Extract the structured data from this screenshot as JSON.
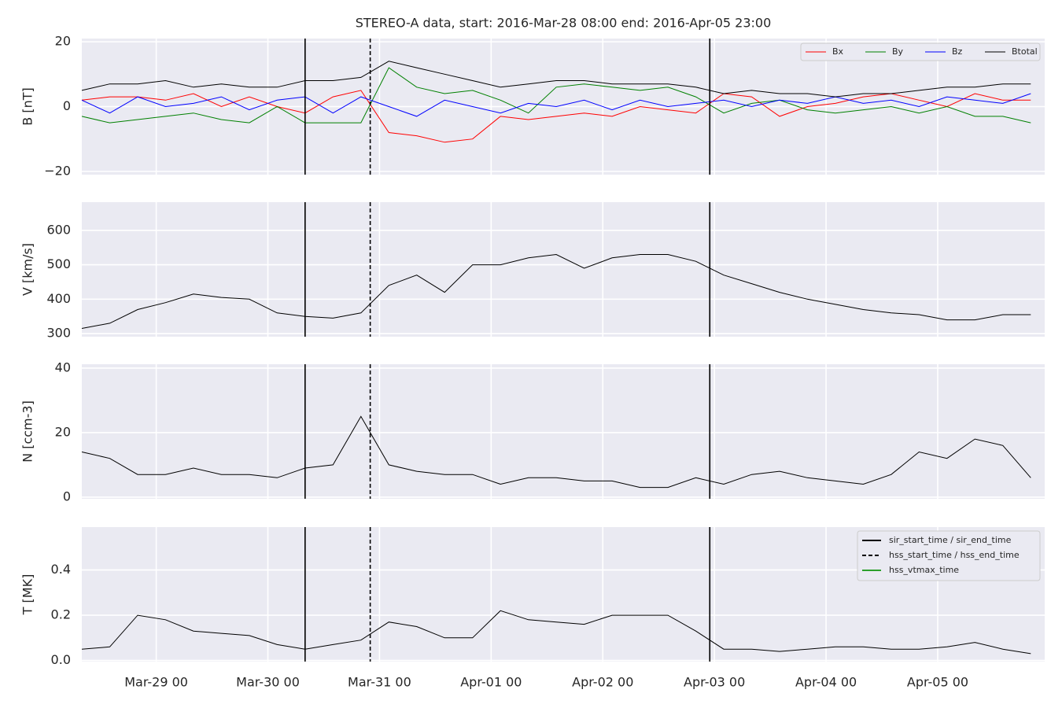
{
  "chart_data": [
    {
      "type": "line",
      "title": "STEREO-A data, start: 2016-Mar-28 08:00  end: 2016-Apr-05 23:00",
      "ylabel": "B [nT]",
      "x": [
        "Mar-28 08",
        "Mar-28 14",
        "Mar-28 20",
        "Mar-29 02",
        "Mar-29 08",
        "Mar-29 14",
        "Mar-29 20",
        "Mar-30 02",
        "Mar-30 08",
        "Mar-30 14",
        "Mar-30 20",
        "Mar-31 02",
        "Mar-31 08",
        "Mar-31 14",
        "Mar-31 20",
        "Apr-01 02",
        "Apr-01 08",
        "Apr-01 14",
        "Apr-01 20",
        "Apr-02 02",
        "Apr-02 08",
        "Apr-02 14",
        "Apr-02 20",
        "Apr-03 02",
        "Apr-03 08",
        "Apr-03 14",
        "Apr-03 20",
        "Apr-04 02",
        "Apr-04 08",
        "Apr-04 14",
        "Apr-04 20",
        "Apr-05 02",
        "Apr-05 08",
        "Apr-05 14",
        "Apr-05 20"
      ],
      "series": [
        {
          "name": "Bx",
          "color": "#ff0000",
          "values": [
            2,
            3,
            3,
            2,
            4,
            0,
            3,
            0,
            -2,
            3,
            5,
            -8,
            -9,
            -11,
            -10,
            -3,
            -4,
            -3,
            -2,
            -3,
            0,
            -1,
            -2,
            4,
            3,
            -3,
            0,
            1,
            3,
            4,
            2,
            0,
            4,
            2,
            2
          ]
        },
        {
          "name": "By",
          "color": "#008000",
          "values": [
            -3,
            -5,
            -4,
            -3,
            -2,
            -4,
            -5,
            0,
            -5,
            -5,
            -5,
            12,
            6,
            4,
            5,
            2,
            -2,
            6,
            7,
            6,
            5,
            6,
            3,
            -2,
            1,
            2,
            -1,
            -2,
            -1,
            0,
            -2,
            0,
            -3,
            -3,
            -5
          ]
        },
        {
          "name": "Bz",
          "color": "#0000ff",
          "values": [
            2,
            -2,
            3,
            0,
            1,
            3,
            -1,
            2,
            3,
            -2,
            3,
            0,
            -3,
            2,
            0,
            -2,
            1,
            0,
            2,
            -1,
            2,
            0,
            1,
            2,
            0,
            2,
            1,
            3,
            1,
            2,
            0,
            3,
            2,
            1,
            4
          ]
        },
        {
          "name": "Btotal",
          "color": "#000000",
          "values": [
            5,
            7,
            7,
            8,
            6,
            7,
            6,
            6,
            8,
            8,
            9,
            14,
            12,
            10,
            8,
            6,
            7,
            8,
            8,
            7,
            7,
            7,
            6,
            4,
            5,
            4,
            4,
            3,
            4,
            4,
            5,
            6,
            6,
            7,
            7
          ]
        }
      ],
      "ylim": [
        -21,
        21
      ],
      "yticks": [
        {
          "value": -20,
          "label": "−20"
        },
        0,
        20
      ],
      "grid": true,
      "legend": "upper right"
    },
    {
      "type": "line",
      "ylabel": "V [km/s]",
      "x": [
        "Mar-28 08",
        "Mar-28 14",
        "Mar-28 20",
        "Mar-29 02",
        "Mar-29 08",
        "Mar-29 14",
        "Mar-29 20",
        "Mar-30 02",
        "Mar-30 08",
        "Mar-30 14",
        "Mar-30 20",
        "Mar-31 02",
        "Mar-31 08",
        "Mar-31 14",
        "Mar-31 20",
        "Apr-01 02",
        "Apr-01 08",
        "Apr-01 14",
        "Apr-01 20",
        "Apr-02 02",
        "Apr-02 08",
        "Apr-02 14",
        "Apr-02 20",
        "Apr-03 02",
        "Apr-03 08",
        "Apr-03 14",
        "Apr-03 20",
        "Apr-04 02",
        "Apr-04 08",
        "Apr-04 14",
        "Apr-04 20",
        "Apr-05 02",
        "Apr-05 08",
        "Apr-05 14",
        "Apr-05 20"
      ],
      "values": [
        315,
        330,
        370,
        390,
        415,
        405,
        400,
        360,
        350,
        345,
        360,
        440,
        470,
        420,
        500,
        500,
        520,
        530,
        490,
        520,
        530,
        530,
        510,
        470,
        445,
        420,
        400,
        385,
        370,
        360,
        355,
        340,
        340,
        355,
        355
      ],
      "color": "#000000",
      "ylim": [
        291,
        682
      ],
      "yticks": [
        300,
        400,
        500,
        600
      ],
      "grid": true
    },
    {
      "type": "line",
      "ylabel": "N [ccm-3]",
      "x": [
        "Mar-28 08",
        "Mar-28 14",
        "Mar-28 20",
        "Mar-29 02",
        "Mar-29 08",
        "Mar-29 14",
        "Mar-29 20",
        "Mar-30 02",
        "Mar-30 08",
        "Mar-30 14",
        "Mar-30 20",
        "Mar-31 02",
        "Mar-31 08",
        "Mar-31 14",
        "Mar-31 20",
        "Apr-01 02",
        "Apr-01 08",
        "Apr-01 14",
        "Apr-01 20",
        "Apr-02 02",
        "Apr-02 08",
        "Apr-02 14",
        "Apr-02 20",
        "Apr-03 02",
        "Apr-03 08",
        "Apr-03 14",
        "Apr-03 20",
        "Apr-04 02",
        "Apr-04 08",
        "Apr-04 14",
        "Apr-04 20",
        "Apr-05 02",
        "Apr-05 08",
        "Apr-05 14",
        "Apr-05 20"
      ],
      "values": [
        14,
        12,
        7,
        7,
        9,
        7,
        7,
        6,
        9,
        10,
        25,
        10,
        8,
        7,
        7,
        4,
        6,
        6,
        5,
        5,
        3,
        3,
        6,
        4,
        7,
        8,
        6,
        5,
        4,
        7,
        14,
        12,
        18,
        16,
        6
      ],
      "color": "#000000",
      "ylim": [
        -0.5,
        41.2
      ],
      "yticks": [
        0,
        20,
        40
      ],
      "grid": true
    },
    {
      "type": "line",
      "ylabel": "T [MK]",
      "x": [
        "Mar-28 08",
        "Mar-28 14",
        "Mar-28 20",
        "Mar-29 02",
        "Mar-29 08",
        "Mar-29 14",
        "Mar-29 20",
        "Mar-30 02",
        "Mar-30 08",
        "Mar-30 14",
        "Mar-30 20",
        "Mar-31 02",
        "Mar-31 08",
        "Mar-31 14",
        "Mar-31 20",
        "Apr-01 02",
        "Apr-01 08",
        "Apr-01 14",
        "Apr-01 20",
        "Apr-02 02",
        "Apr-02 08",
        "Apr-02 14",
        "Apr-02 20",
        "Apr-03 02",
        "Apr-03 08",
        "Apr-03 14",
        "Apr-03 20",
        "Apr-04 02",
        "Apr-04 08",
        "Apr-04 14",
        "Apr-04 20",
        "Apr-05 02",
        "Apr-05 08",
        "Apr-05 14",
        "Apr-05 20"
      ],
      "values": [
        0.05,
        0.06,
        0.2,
        0.18,
        0.13,
        0.12,
        0.11,
        0.07,
        0.05,
        0.07,
        0.09,
        0.17,
        0.15,
        0.1,
        0.1,
        0.22,
        0.18,
        0.17,
        0.16,
        0.2,
        0.2,
        0.2,
        0.13,
        0.05,
        0.05,
        0.04,
        0.05,
        0.06,
        0.06,
        0.05,
        0.05,
        0.06,
        0.08,
        0.05,
        0.03
      ],
      "color": "#000000",
      "ylim": [
        -0.005,
        0.59
      ],
      "yticks": [
        {
          "value": 0,
          "label": "0.0"
        },
        0.2,
        0.4
      ],
      "grid": true,
      "xlim": [
        "Mar-28 08",
        "Apr-05 23"
      ],
      "xticks": [
        "Mar-29 00",
        "Mar-30 00",
        "Mar-31 00",
        "Apr-01 00",
        "Apr-02 00",
        "Apr-03 00",
        "Apr-04 00",
        "Apr-05 00"
      ],
      "legend": "upper right",
      "events": [
        {
          "name": "sir_start_time / sir_end_time",
          "color": "#000000",
          "dash": false,
          "times": [
            "Mar-30 08",
            "Apr-02 23"
          ]
        },
        {
          "name": "hss_start_time / hss_end_time",
          "color": "#000000",
          "dash": true,
          "times": [
            "Mar-30 22"
          ]
        },
        {
          "name": "hss_vtmax_time",
          "color": "#2ca02c",
          "dash": false,
          "times": []
        }
      ]
    }
  ]
}
